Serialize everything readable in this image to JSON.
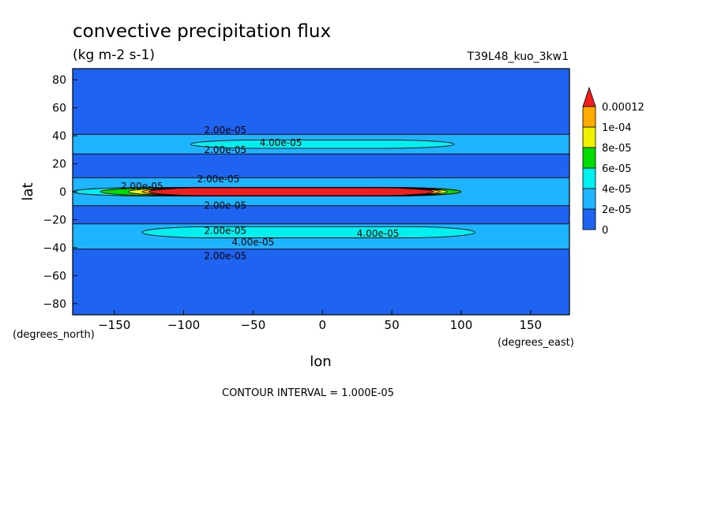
{
  "chart_data": {
    "type": "heatmap",
    "title": "convective precipitation flux",
    "units": "(kg m-2 s-1)",
    "dataset": "T39L48_kuo_3kw1",
    "xlabel": "lon",
    "ylabel": "lat",
    "x_units": "(degrees_east)",
    "y_units": "(degrees_north)",
    "xlim": [
      -180,
      178
    ],
    "ylim": [
      -88,
      88
    ],
    "x_ticks": [
      -150,
      -100,
      -50,
      0,
      50,
      100,
      150
    ],
    "x_tick_labels": [
      "−150",
      "−100",
      "−50",
      "0",
      "50",
      "100",
      "150"
    ],
    "y_ticks": [
      80,
      60,
      40,
      20,
      0,
      -20,
      -40,
      -60,
      -80
    ],
    "y_tick_labels": [
      "80",
      "60",
      "40",
      "20",
      "0",
      "−20",
      "−40",
      "−60",
      "−80"
    ],
    "contour_interval_text": "CONTOUR INTERVAL = 1.000E-05",
    "colorbar": {
      "levels": [
        0,
        2e-05,
        4e-05,
        6e-05,
        8e-05,
        0.0001,
        0.00012
      ],
      "labels": [
        "0",
        "2e-05",
        "4e-05",
        "6e-05",
        "8e-05",
        "1e-04",
        "0.00012"
      ],
      "colors": [
        "#1e64f0",
        "#1eb4ff",
        "#00f0f0",
        "#00dc00",
        "#f0f000",
        "#ffaa00",
        "#f01e1e"
      ]
    },
    "regions": [
      {
        "name": "background",
        "level": 0,
        "lon": [
          -180,
          178
        ],
        "lat": [
          -88,
          88
        ]
      },
      {
        "name": "northern-midlatitude-band",
        "level": 1,
        "lon": [
          -180,
          178
        ],
        "lat": [
          27,
          41
        ]
      },
      {
        "name": "southern-midlatitude-band",
        "level": 1,
        "lon": [
          -180,
          178
        ],
        "lat": [
          -41,
          -23
        ]
      },
      {
        "name": "equatorial-band",
        "level": 1,
        "lon": [
          -180,
          178
        ],
        "lat": [
          -10,
          10
        ]
      },
      {
        "name": "northern-storm-track",
        "level": 2,
        "lon": [
          -95,
          95
        ],
        "lat": [
          31,
          37
        ]
      },
      {
        "name": "southern-storm-track",
        "level": 2,
        "lon": [
          -130,
          110
        ],
        "lat": [
          -33,
          -25
        ]
      },
      {
        "name": "itcz-outer",
        "level": 2,
        "lon": [
          -180,
          100
        ],
        "lat": [
          -3,
          3
        ]
      },
      {
        "name": "itcz-green",
        "level": 3,
        "lon": [
          -160,
          100
        ],
        "lat": [
          -3,
          3
        ]
      },
      {
        "name": "itcz-yellow",
        "level": 4,
        "lon": [
          -140,
          90
        ],
        "lat": [
          -3,
          3
        ]
      },
      {
        "name": "itcz-orange",
        "level": 5,
        "lon": [
          -130,
          85
        ],
        "lat": [
          -3,
          3
        ]
      },
      {
        "name": "itcz-core",
        "level": 6,
        "lon": [
          -125,
          80
        ],
        "lat": [
          -3,
          3
        ]
      }
    ],
    "contour_labels": [
      {
        "text": "2.00e-05",
        "lon": -70,
        "lat": 44
      },
      {
        "text": "4.00e-05",
        "lon": -30,
        "lat": 35
      },
      {
        "text": "2.00e-05",
        "lon": -70,
        "lat": 30
      },
      {
        "text": "2.00e-05",
        "lon": -75,
        "lat": 9
      },
      {
        "text": "2.00e-05",
        "lon": -130,
        "lat": 4
      },
      {
        "text": "2.00e-05",
        "lon": -70,
        "lat": -10
      },
      {
        "text": "2.00e-05",
        "lon": -70,
        "lat": -28
      },
      {
        "text": "4.00e-05",
        "lon": -50,
        "lat": -36
      },
      {
        "text": "4.00e-05",
        "lon": 40,
        "lat": -30
      },
      {
        "text": "2.00e-05",
        "lon": -70,
        "lat": -46
      }
    ]
  }
}
